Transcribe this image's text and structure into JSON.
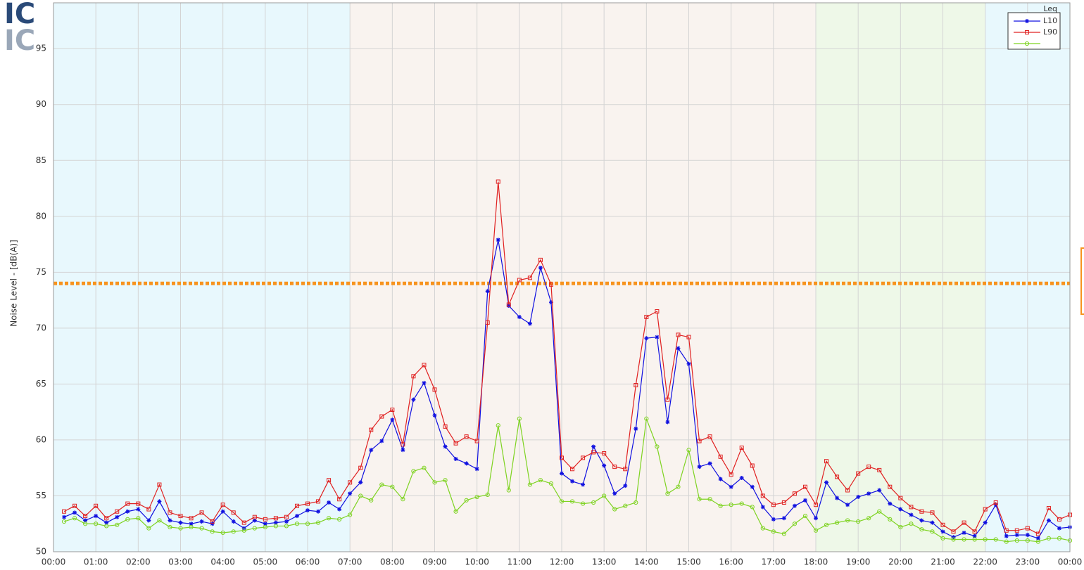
{
  "chart_data": {
    "type": "line",
    "logo": [
      "IC",
      "IC"
    ],
    "ylabel": "Noise Level - [dB(A)]",
    "legend_title": "Leq",
    "legend": "top-right",
    "grid": true,
    "xlim": [
      0,
      24
    ],
    "ylim": [
      50,
      99.1
    ],
    "yticks": [
      50,
      55,
      60,
      65,
      70,
      75,
      80,
      85,
      90,
      95
    ],
    "xticks": [
      {
        "value": 0,
        "label": "00:00"
      },
      {
        "value": 1,
        "label": "01:00"
      },
      {
        "value": 2,
        "label": "02:00"
      },
      {
        "value": 3,
        "label": "03:00"
      },
      {
        "value": 4,
        "label": "04:00"
      },
      {
        "value": 5,
        "label": "05:00"
      },
      {
        "value": 6,
        "label": "06:00"
      },
      {
        "value": 7,
        "label": "07:00"
      },
      {
        "value": 8,
        "label": "08:00"
      },
      {
        "value": 9,
        "label": "09:00"
      },
      {
        "value": 10,
        "label": "10:00"
      },
      {
        "value": 11,
        "label": "11:00"
      },
      {
        "value": 12,
        "label": "12:00"
      },
      {
        "value": 13,
        "label": "13:00"
      },
      {
        "value": 14,
        "label": "14:00"
      },
      {
        "value": 15,
        "label": "15:00"
      },
      {
        "value": 16,
        "label": "16:00"
      },
      {
        "value": 17,
        "label": "17:00"
      },
      {
        "value": 18,
        "label": "18:00"
      },
      {
        "value": 19,
        "label": "19:00"
      },
      {
        "value": 20,
        "label": "20:00"
      },
      {
        "value": 21,
        "label": "21:00"
      },
      {
        "value": 22,
        "label": "22:00"
      },
      {
        "value": 23,
        "label": "23:00"
      },
      {
        "value": 24,
        "label": "00:00"
      }
    ],
    "bands": [
      {
        "from": 0,
        "to": 7,
        "color": "#e8f8fd"
      },
      {
        "from": 7,
        "to": 18,
        "color": "#f9f3ef"
      },
      {
        "from": 18,
        "to": 22,
        "color": "#eef8e8"
      },
      {
        "from": 22,
        "to": 24,
        "color": "#e8f8fd"
      }
    ],
    "threshold": {
      "value": 74,
      "color": "#f7931e"
    },
    "x": [
      0.25,
      0.5,
      0.75,
      1,
      1.25,
      1.5,
      1.75,
      2,
      2.25,
      2.5,
      2.75,
      3,
      3.25,
      3.5,
      3.75,
      4,
      4.25,
      4.5,
      4.75,
      5,
      5.25,
      5.5,
      5.75,
      6,
      6.25,
      6.5,
      6.75,
      7,
      7.25,
      7.5,
      7.75,
      8,
      8.25,
      8.5,
      8.75,
      9,
      9.25,
      9.5,
      9.75,
      10,
      10.25,
      10.5,
      10.75,
      11,
      11.25,
      11.5,
      11.75,
      12,
      12.25,
      12.5,
      12.75,
      13,
      13.25,
      13.5,
      13.75,
      14,
      14.25,
      14.5,
      14.75,
      15,
      15.25,
      15.5,
      15.75,
      16,
      16.25,
      16.5,
      16.75,
      17,
      17.25,
      17.5,
      17.75,
      18,
      18.25,
      18.5,
      18.75,
      19,
      19.25,
      19.5,
      19.75,
      20,
      20.25,
      20.5,
      20.75,
      21,
      21.25,
      21.5,
      21.75,
      22,
      22.25,
      22.5,
      22.75,
      23,
      23.25,
      23.5,
      23.75,
      24
    ],
    "series": [
      {
        "name": "L10",
        "color": "#1010e0",
        "marker": "star",
        "values": [
          53.1,
          53.5,
          52.8,
          53.2,
          52.6,
          53.1,
          53.6,
          53.8,
          52.8,
          54.5,
          52.8,
          52.6,
          52.5,
          52.7,
          52.5,
          53.6,
          52.7,
          52.1,
          52.8,
          52.5,
          52.6,
          52.7,
          53.2,
          53.7,
          53.6,
          54.4,
          53.8,
          55.2,
          56.2,
          59.1,
          59.9,
          61.8,
          59.1,
          63.6,
          65.1,
          62.2,
          59.4,
          58.3,
          57.9,
          57.4,
          73.3,
          77.9,
          72.0,
          71.0,
          70.4,
          75.4,
          72.3,
          57.0,
          56.3,
          56.0,
          59.4,
          57.7,
          55.2,
          55.9,
          61.0,
          69.1,
          69.2,
          61.6,
          68.2,
          66.8,
          57.6,
          57.9,
          56.5,
          55.8,
          56.6,
          55.8,
          54.0,
          52.9,
          53.0,
          54.1,
          54.6,
          53.0,
          56.2,
          54.8,
          54.2,
          54.9,
          55.2,
          55.5,
          54.3,
          53.8,
          53.3,
          52.8,
          52.6,
          51.8,
          51.3,
          51.7,
          51.4,
          52.6,
          54.2,
          51.4,
          51.5,
          51.5,
          51.2,
          52.8,
          52.1,
          52.2
        ]
      },
      {
        "name": "L90",
        "color": "#e02020",
        "marker": "square",
        "values": [
          53.6,
          54.1,
          53.2,
          54.1,
          53.0,
          53.6,
          54.3,
          54.3,
          53.8,
          56.0,
          53.5,
          53.2,
          53.0,
          53.5,
          52.7,
          54.2,
          53.5,
          52.6,
          53.1,
          52.9,
          53.0,
          53.1,
          54.1,
          54.3,
          54.5,
          56.4,
          54.7,
          56.2,
          57.5,
          60.9,
          62.1,
          62.7,
          59.6,
          65.7,
          66.7,
          64.5,
          61.2,
          59.7,
          60.3,
          59.9,
          70.5,
          83.1,
          72.1,
          74.3,
          74.5,
          76.1,
          73.9,
          58.4,
          57.4,
          58.4,
          58.9,
          58.8,
          57.6,
          57.4,
          64.9,
          71.0,
          71.5,
          63.6,
          69.4,
          69.2,
          59.9,
          60.3,
          58.5,
          56.9,
          59.3,
          57.7,
          55.0,
          54.2,
          54.4,
          55.2,
          55.8,
          54.2,
          58.1,
          56.7,
          55.5,
          57.0,
          57.6,
          57.3,
          55.8,
          54.8,
          54.0,
          53.6,
          53.5,
          52.4,
          51.8,
          52.6,
          51.8,
          53.8,
          54.4,
          51.9,
          51.9,
          52.1,
          51.6,
          53.9,
          52.9,
          53.3
        ]
      },
      {
        "name": null,
        "color": "#7ed321",
        "marker": "circle",
        "values": [
          52.7,
          53.0,
          52.5,
          52.5,
          52.3,
          52.4,
          52.9,
          53.0,
          52.1,
          52.8,
          52.2,
          52.1,
          52.2,
          52.1,
          51.8,
          51.7,
          51.8,
          51.9,
          52.1,
          52.2,
          52.3,
          52.3,
          52.5,
          52.5,
          52.6,
          53.0,
          52.9,
          53.3,
          55.0,
          54.6,
          56.0,
          55.8,
          54.7,
          57.2,
          57.5,
          56.2,
          56.4,
          53.6,
          54.6,
          54.9,
          55.1,
          61.3,
          55.5,
          61.9,
          56.0,
          56.4,
          56.1,
          54.5,
          54.5,
          54.3,
          54.4,
          55.0,
          53.8,
          54.1,
          54.4,
          61.9,
          59.4,
          55.2,
          55.8,
          59.1,
          54.7,
          54.7,
          54.1,
          54.2,
          54.3,
          54.0,
          52.1,
          51.8,
          51.6,
          52.5,
          53.2,
          51.9,
          52.4,
          52.6,
          52.8,
          52.7,
          53.0,
          53.6,
          52.9,
          52.2,
          52.5,
          52.0,
          51.8,
          51.2,
          51.1,
          51.1,
          51.1,
          51.1,
          51.1,
          50.9,
          51.0,
          51.0,
          50.9,
          51.2,
          51.2,
          51.0
        ]
      }
    ]
  }
}
